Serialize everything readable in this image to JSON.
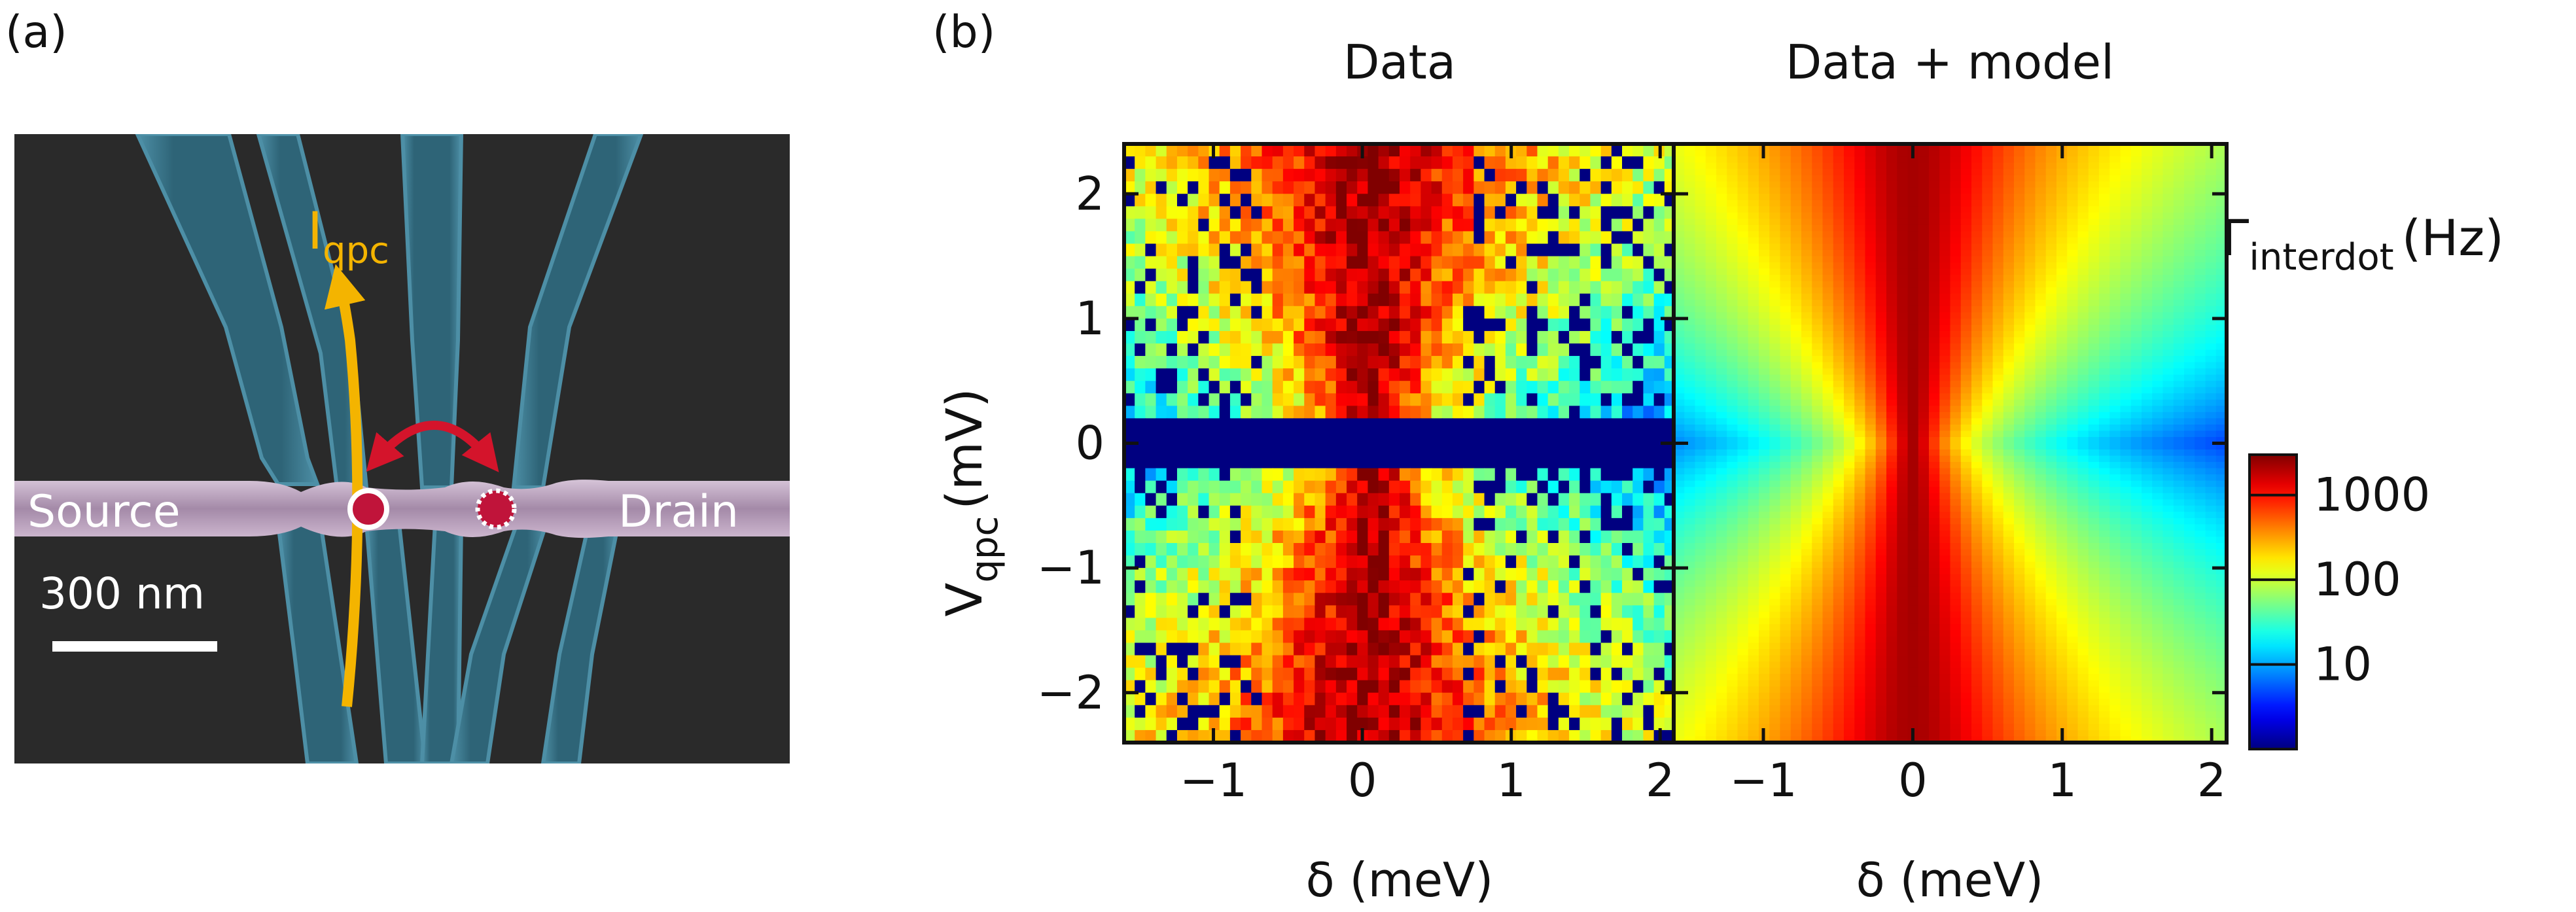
{
  "figure": {
    "panel_a_label": "(a)",
    "panel_b_label": "(b)"
  },
  "panel_a": {
    "current_label": "I",
    "current_subscript": "qpc",
    "source_label": "Source",
    "drain_label": "Drain",
    "scale_label": "300 nm",
    "colors": {
      "background": "#2a2a2a",
      "gate": "#2e6477",
      "gate_edge": "#4d8fa6",
      "channel": "#a48aa8",
      "arrow_current": "#f4b400",
      "arrow_tunnel": "#d4142b",
      "dot": "#c0143a"
    }
  },
  "panel_b": {
    "colorbar": {
      "label": "Γ",
      "label_subscript": "interdot",
      "unit": "(Hz)",
      "scale": "log",
      "range": [
        1,
        3000
      ],
      "ticks": [
        10,
        100,
        1000
      ],
      "tick_labels": [
        "10",
        "100",
        "1000"
      ]
    }
  },
  "chart_data": [
    {
      "type": "heatmap",
      "title": "Data",
      "xlabel": "δ (meV)",
      "ylabel": "V",
      "ylabel_subscript": "qpc",
      "ylabel_unit": "(mV)",
      "xlim": [
        -1.6,
        2.1
      ],
      "ylim": [
        -2.4,
        2.4
      ],
      "xticks": [
        -1,
        0,
        1,
        2
      ],
      "xtick_labels": [
        "−1",
        "0",
        "1",
        "2"
      ],
      "yticks": [
        -2,
        -1,
        0,
        1,
        2
      ],
      "ytick_labels": [
        "−2",
        "−1",
        "0",
        "1",
        "2"
      ],
      "nx": 52,
      "ny": 48,
      "gap_in_v_qpc": [
        -0.2,
        0.2
      ],
      "peak_rate_hz": 2500,
      "peak_center_mev": 0.05,
      "floor_rate_hz": 1,
      "value": "Γ_interdot (Hz), Lorentzian-like in δ, widening with |V_qpc|, noisy"
    },
    {
      "type": "heatmap",
      "title": "Data + model",
      "xlabel": "δ (meV)",
      "xlim": [
        -1.6,
        2.1
      ],
      "ylim": [
        -2.4,
        2.4
      ],
      "xticks": [
        -1,
        0,
        1,
        2
      ],
      "xtick_labels": [
        "−1",
        "0",
        "1",
        "2"
      ],
      "nx": 52,
      "ny": 96,
      "peak_rate_hz": 2200,
      "peak_center_mev": 0.0,
      "value": "Γ_interdot (Hz), smooth model"
    }
  ]
}
